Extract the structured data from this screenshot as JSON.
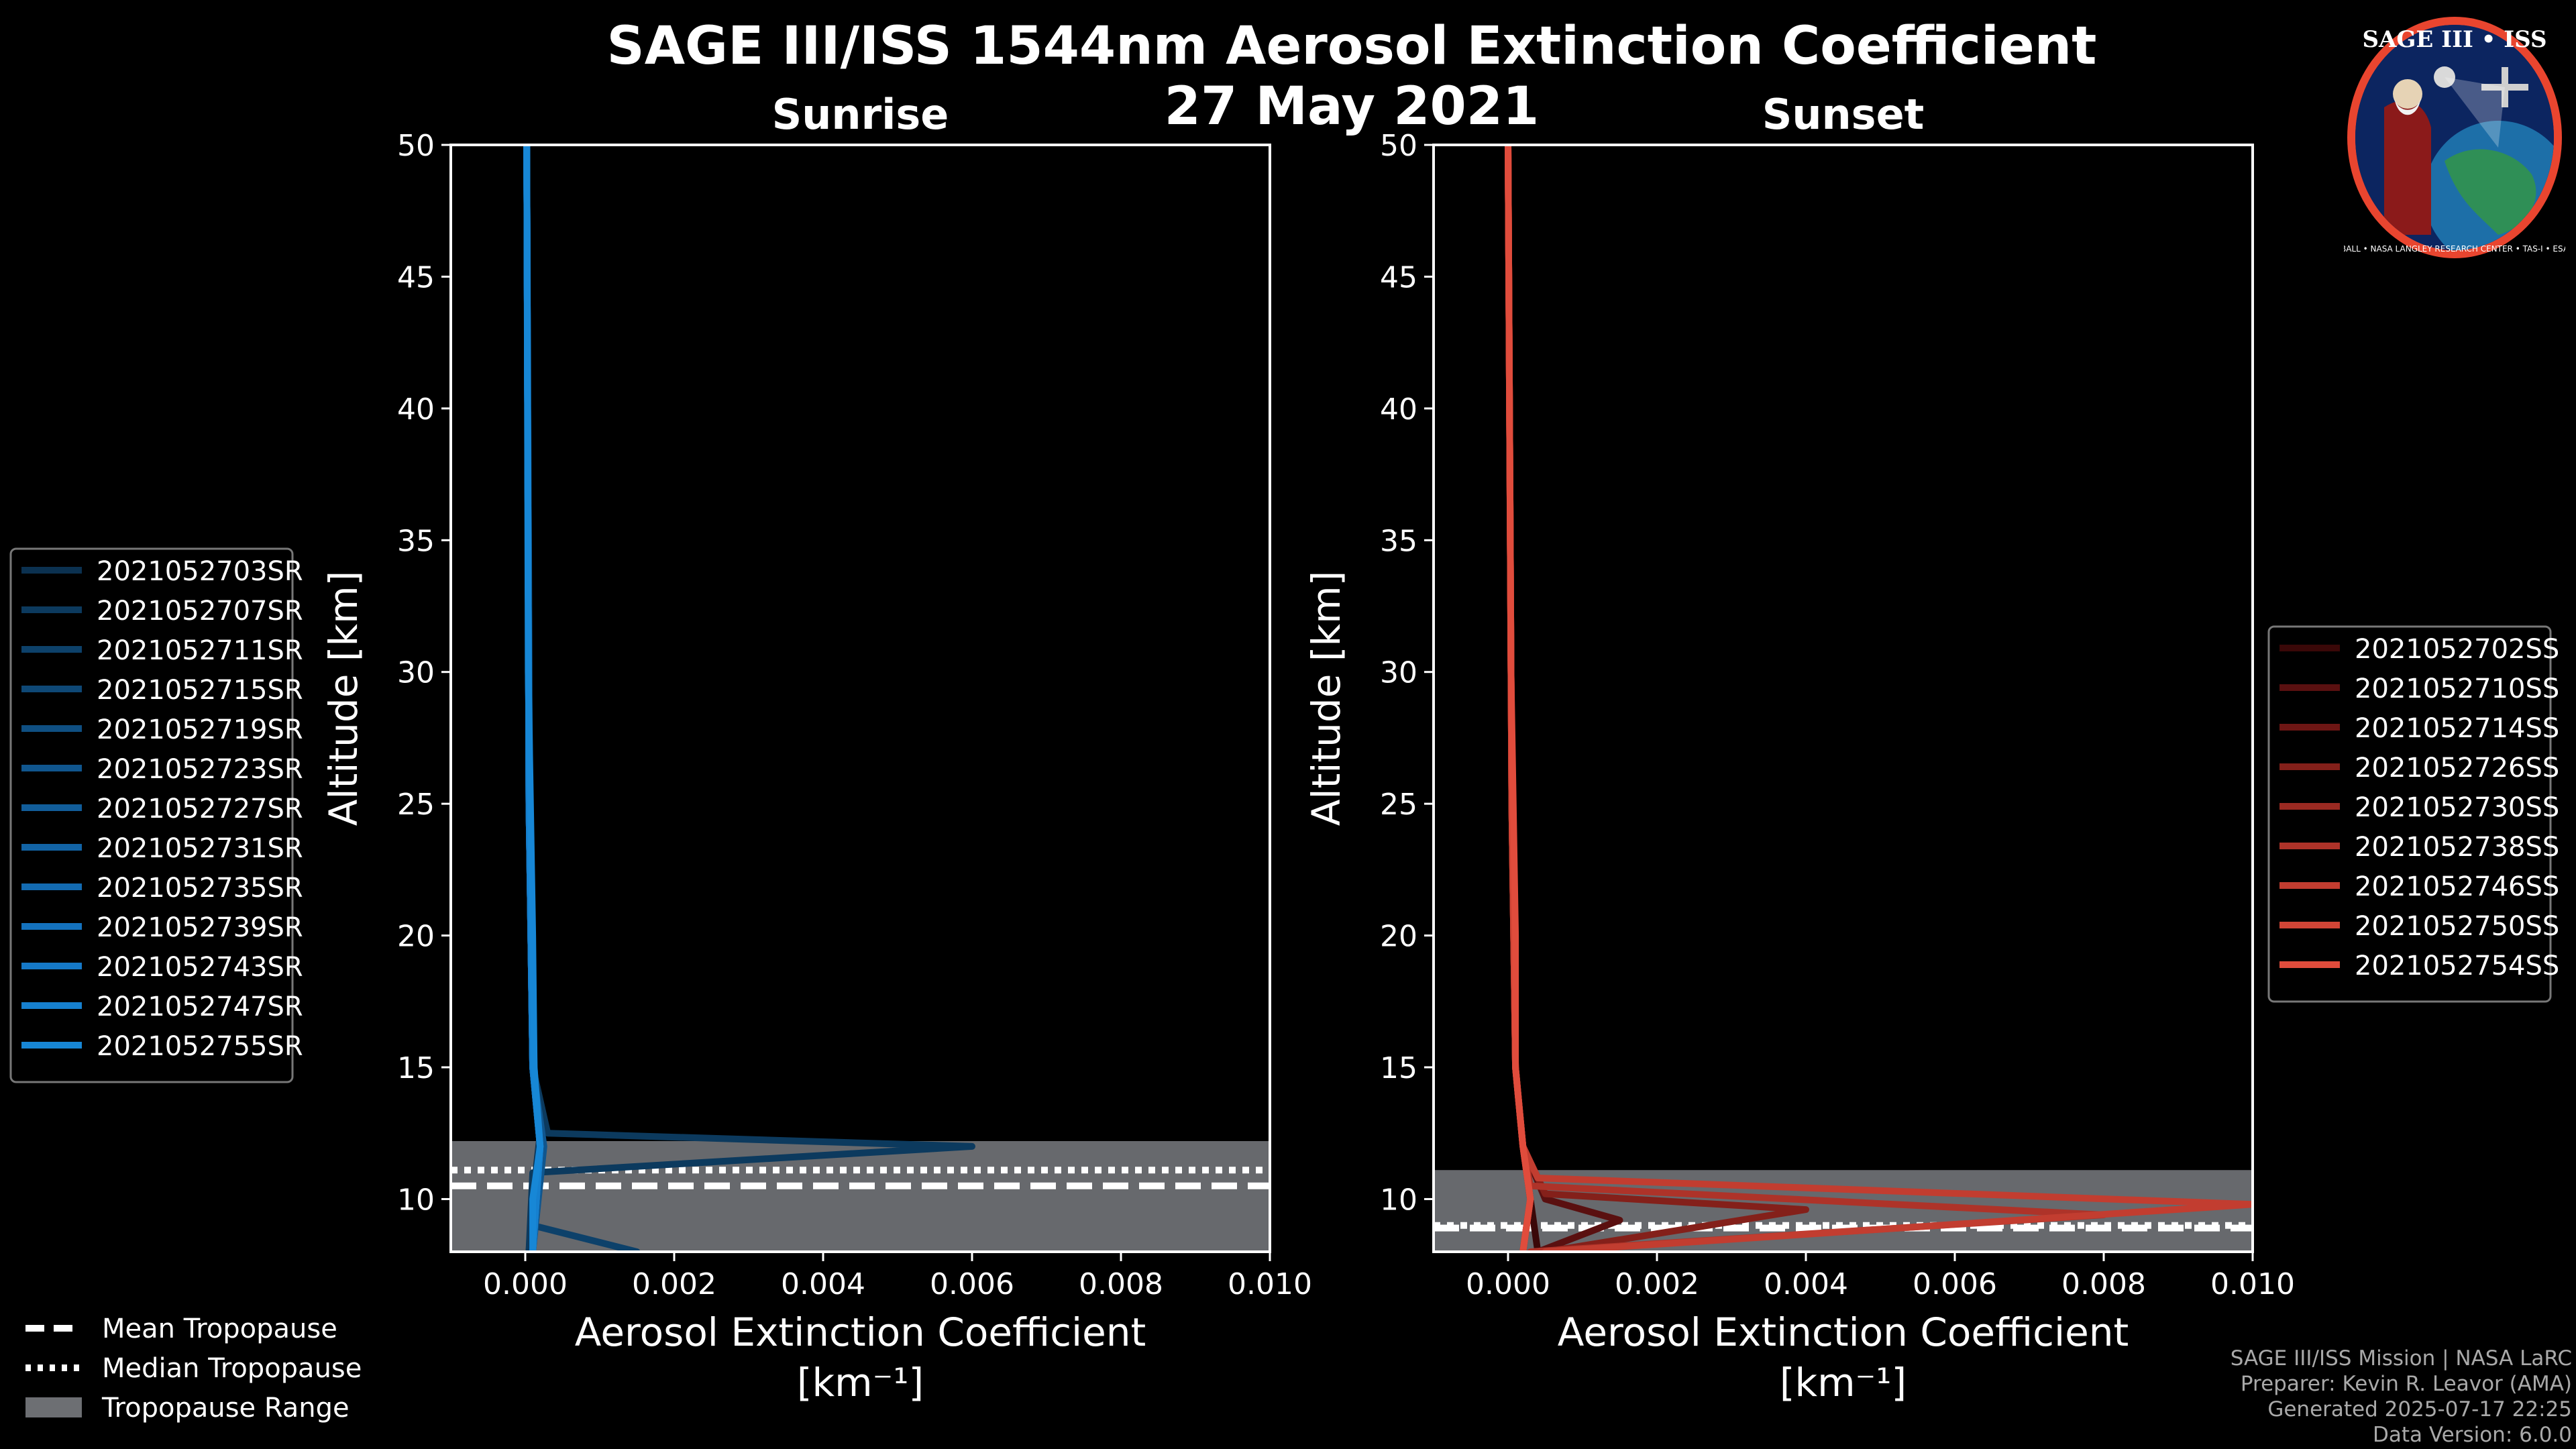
{
  "chart_data": {
    "type": "line",
    "title": "SAGE III/ISS 1544nm Aerosol Extinction Coefficient",
    "subtitle": "27 May 2021",
    "xlabel": "Aerosol Extinction Coefficient",
    "xunit": "[km⁻¹]",
    "ylabel": "Altitude [km]",
    "xlim": [
      -0.001,
      0.01
    ],
    "ylim": [
      8,
      50
    ],
    "xticks": [
      "0.000",
      "0.002",
      "0.004",
      "0.006",
      "0.008",
      "0.010"
    ],
    "yticks": [
      "10",
      "15",
      "20",
      "25",
      "30",
      "35",
      "40",
      "45",
      "50"
    ],
    "tick_values_x": [
      0,
      0.002,
      0.004,
      0.006,
      0.008,
      0.01
    ],
    "tick_values_y": [
      10,
      15,
      20,
      25,
      30,
      35,
      40,
      45,
      50
    ],
    "panels": [
      {
        "title": "Sunrise",
        "tropopause": {
          "mean": 10.5,
          "median": 11.1,
          "range": [
            8,
            12.2
          ]
        },
        "series": [
          {
            "name": "2021052703SR",
            "color": "#0b3150",
            "points": [
              [
                2e-05,
                50
              ],
              [
                5e-05,
                25
              ],
              [
                0.0001,
                15
              ],
              [
                0.0002,
                12.5
              ],
              [
                0.0001,
                10
              ],
              [
                5e-05,
                8
              ]
            ]
          },
          {
            "name": "2021052707SR",
            "color": "#0c3a5e",
            "points": [
              [
                2e-05,
                50
              ],
              [
                5e-05,
                25
              ],
              [
                0.0001,
                15
              ],
              [
                0.0003,
                12.5
              ],
              [
                0.006,
                12.0
              ],
              [
                0.0001,
                11
              ],
              [
                5e-05,
                8
              ]
            ]
          },
          {
            "name": "2021052711SR",
            "color": "#0d416a",
            "points": [
              [
                2e-05,
                50
              ],
              [
                6e-05,
                25
              ],
              [
                0.0001,
                15
              ],
              [
                0.0002,
                12.5
              ],
              [
                0.0001,
                9
              ],
              [
                0.0015,
                8
              ]
            ]
          },
          {
            "name": "2021052715SR",
            "color": "#0e4876",
            "points": [
              [
                2e-05,
                50
              ],
              [
                5e-05,
                25
              ],
              [
                0.00012,
                15
              ],
              [
                0.0002,
                12
              ],
              [
                0.0001,
                8
              ]
            ]
          },
          {
            "name": "2021052719SR",
            "color": "#0f4f82",
            "points": [
              [
                2e-05,
                50
              ],
              [
                5e-05,
                25
              ],
              [
                0.0001,
                15
              ],
              [
                0.0002,
                12
              ],
              [
                0.0001,
                8
              ]
            ]
          },
          {
            "name": "2021052723SR",
            "color": "#10568e",
            "points": [
              [
                2e-05,
                50
              ],
              [
                5e-05,
                25
              ],
              [
                0.0001,
                15
              ],
              [
                0.00025,
                12
              ],
              [
                0.0001,
                8
              ]
            ]
          },
          {
            "name": "2021052727SR",
            "color": "#115d9a",
            "points": [
              [
                2e-05,
                50
              ],
              [
                5e-05,
                25
              ],
              [
                0.0001,
                15
              ],
              [
                0.0002,
                12
              ],
              [
                0.0001,
                8
              ]
            ]
          },
          {
            "name": "2021052731SR",
            "color": "#1264a6",
            "points": [
              [
                2e-05,
                50
              ],
              [
                5e-05,
                25
              ],
              [
                0.0001,
                15
              ],
              [
                0.0002,
                12
              ],
              [
                0.0001,
                8
              ]
            ]
          },
          {
            "name": "2021052735SR",
            "color": "#136bb2",
            "points": [
              [
                2e-05,
                50
              ],
              [
                5e-05,
                25
              ],
              [
                0.0001,
                15
              ],
              [
                0.0002,
                12
              ],
              [
                0.0001,
                8
              ]
            ]
          },
          {
            "name": "2021052739SR",
            "color": "#1472be",
            "points": [
              [
                2e-05,
                50
              ],
              [
                5e-05,
                25
              ],
              [
                0.0001,
                15
              ],
              [
                0.0002,
                12
              ],
              [
                0.0001,
                8
              ]
            ]
          },
          {
            "name": "2021052743SR",
            "color": "#1579c8",
            "points": [
              [
                2e-05,
                50
              ],
              [
                5e-05,
                25
              ],
              [
                0.0001,
                15
              ],
              [
                0.0002,
                12
              ],
              [
                0.0001,
                8
              ]
            ]
          },
          {
            "name": "2021052747SR",
            "color": "#1680cf",
            "points": [
              [
                2e-05,
                50
              ],
              [
                5e-05,
                25
              ],
              [
                0.0001,
                15
              ],
              [
                0.0002,
                12
              ],
              [
                0.0001,
                8
              ]
            ]
          },
          {
            "name": "2021052755SR",
            "color": "#1787d6",
            "points": [
              [
                2e-05,
                50
              ],
              [
                4e-05,
                30
              ],
              [
                0.0001,
                20
              ],
              [
                0.00012,
                15
              ],
              [
                0.0002,
                12
              ],
              [
                0.0001,
                10
              ],
              [
                0.0001,
                8
              ]
            ]
          }
        ]
      },
      {
        "title": "Sunset",
        "tropopause": {
          "mean": 8.9,
          "median": 9.0,
          "range": [
            8,
            11.1
          ]
        },
        "series": [
          {
            "name": "2021052702SS",
            "color": "#3a0808",
            "points": [
              [
                0.0,
                50
              ],
              [
                5e-05,
                25
              ],
              [
                0.0001,
                15
              ],
              [
                0.0002,
                12
              ],
              [
                0.0003,
                10
              ],
              [
                0.0004,
                8
              ]
            ]
          },
          {
            "name": "2021052710SS",
            "color": "#5a1010",
            "points": [
              [
                0.0,
                50
              ],
              [
                5e-05,
                25
              ],
              [
                0.0001,
                15
              ],
              [
                0.0002,
                12
              ],
              [
                0.0005,
                10
              ],
              [
                0.0015,
                9.2
              ],
              [
                0.0004,
                8
              ]
            ]
          },
          {
            "name": "2021052714SS",
            "color": "#6e1614",
            "points": [
              [
                0.0,
                50
              ],
              [
                5e-05,
                25
              ],
              [
                0.0001,
                15
              ],
              [
                0.0002,
                12
              ],
              [
                0.0003,
                10
              ],
              [
                0.0002,
                8
              ]
            ]
          },
          {
            "name": "2021052726SS",
            "color": "#84201a",
            "points": [
              [
                0.0,
                50
              ],
              [
                5e-05,
                25
              ],
              [
                0.0001,
                15
              ],
              [
                0.0002,
                12
              ],
              [
                0.0005,
                10.2
              ],
              [
                0.004,
                9.6
              ],
              [
                0.0005,
                8
              ]
            ]
          },
          {
            "name": "2021052730SS",
            "color": "#9a2a22",
            "points": [
              [
                0.0,
                50
              ],
              [
                5e-05,
                25
              ],
              [
                0.0001,
                15
              ],
              [
                0.0002,
                12
              ],
              [
                0.0003,
                10
              ],
              [
                0.0002,
                8
              ]
            ]
          },
          {
            "name": "2021052738SS",
            "color": "#ae3329",
            "points": [
              [
                0.0,
                50
              ],
              [
                5e-05,
                25
              ],
              [
                0.0001,
                15
              ],
              [
                0.0002,
                12
              ],
              [
                0.0003,
                10.5
              ],
              [
                0.008,
                9.4
              ],
              [
                0.0003,
                8
              ]
            ]
          },
          {
            "name": "2021052746SS",
            "color": "#c23d30",
            "points": [
              [
                0.0,
                50
              ],
              [
                5e-05,
                25
              ],
              [
                0.0001,
                15
              ],
              [
                0.0002,
                12
              ],
              [
                0.0004,
                10.8
              ],
              [
                0.01,
                9.8
              ],
              [
                0.0005,
                8
              ]
            ]
          },
          {
            "name": "2021052750SS",
            "color": "#d24536",
            "points": [
              [
                0.0,
                50
              ],
              [
                5e-05,
                25
              ],
              [
                0.0001,
                15
              ],
              [
                0.0002,
                12
              ],
              [
                0.0003,
                10
              ],
              [
                0.0002,
                8
              ]
            ]
          },
          {
            "name": "2021052754SS",
            "color": "#e04c3c",
            "points": [
              [
                0.0,
                50
              ],
              [
                4e-05,
                30
              ],
              [
                0.0001,
                20
              ],
              [
                0.0001,
                15
              ],
              [
                0.0002,
                12
              ],
              [
                0.0003,
                10
              ],
              [
                0.0002,
                8
              ]
            ]
          }
        ]
      }
    ],
    "legend_tropopause": [
      "Mean Tropopause",
      "Median Tropopause",
      "Tropopause Range"
    ]
  },
  "logo": {
    "top_text": "SAGE III • ISS",
    "ring_text": "BALL • NASA LANGLEY RESEARCH CENTER • TAS-I • ESA"
  },
  "credits": [
    "SAGE III/ISS Mission | NASA LaRC",
    "Preparer: Kevin R. Leavor (AMA)",
    "Generated 2025-07-17 22:25",
    "Data Version: 6.0.0"
  ],
  "colors": {
    "background": "#000000",
    "tropopause_range": "#6d6f73",
    "axes": "#ffffff"
  }
}
